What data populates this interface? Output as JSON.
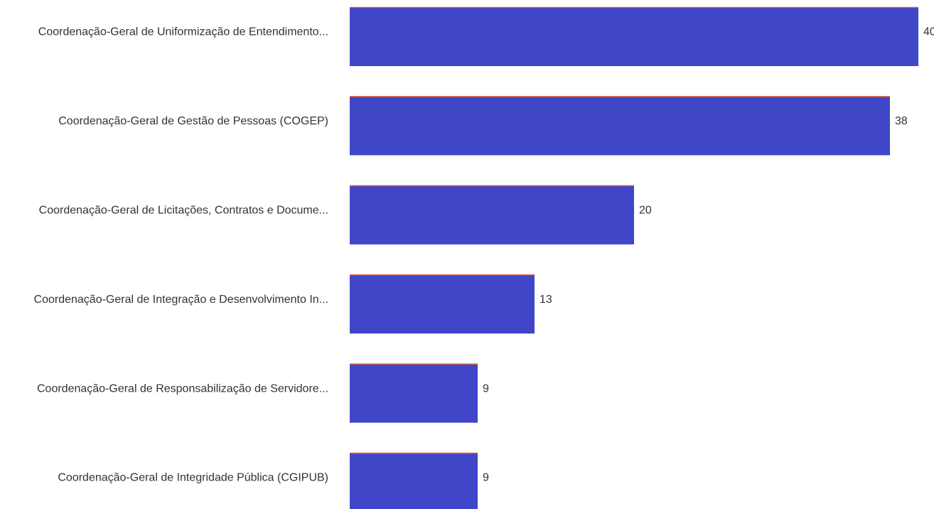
{
  "chart_data": {
    "type": "bar",
    "orientation": "horizontal",
    "categories": [
      "Coordenação-Geral de Uniformização de Entendimento...",
      "Coordenação-Geral de Gestão de Pessoas (COGEP)",
      "Coordenação-Geral de Licitações, Contratos e Docume...",
      "Coordenação-Geral de Integração e Desenvolvimento In...",
      "Coordenação-Geral de Responsabilização de Servidore...",
      "Coordenação-Geral de Integridade Pública (CGIPUB)"
    ],
    "values": [
      40,
      38,
      20,
      13,
      9,
      9
    ],
    "color": "#4046c8",
    "edge_color": "#e05a3a"
  }
}
